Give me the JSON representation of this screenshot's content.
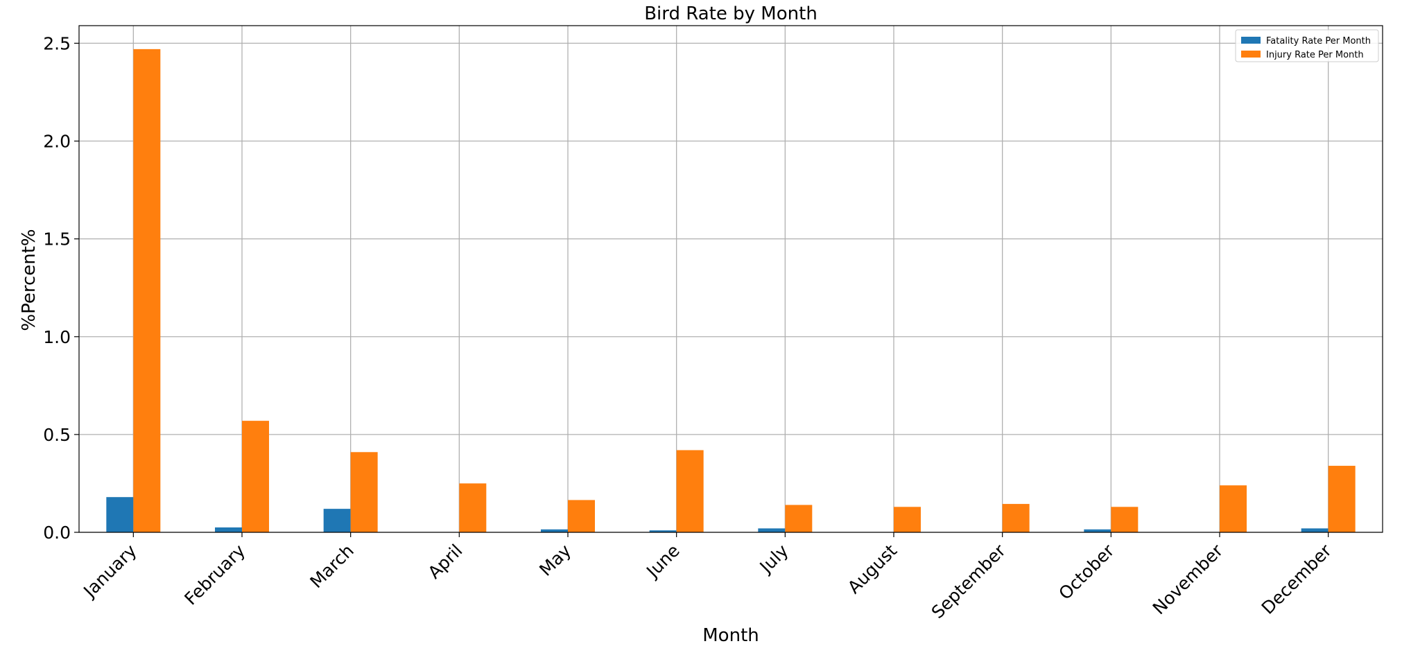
{
  "chart_data": {
    "type": "bar",
    "title": "Bird Rate by Month",
    "xlabel": "Month",
    "ylabel": "%Percent%",
    "categories": [
      "January",
      "February",
      "March",
      "April",
      "May",
      "June",
      "July",
      "August",
      "September",
      "October",
      "November",
      "December"
    ],
    "series": [
      {
        "name": "Fatality Rate Per Month",
        "color": "#1f77b4",
        "values": [
          0.18,
          0.025,
          0.12,
          0.0,
          0.015,
          0.01,
          0.02,
          0.0,
          0.0,
          0.015,
          0.0,
          0.02
        ]
      },
      {
        "name": "Injury Rate Per Month",
        "color": "#ff7f0e",
        "values": [
          2.47,
          0.57,
          0.41,
          0.25,
          0.165,
          0.42,
          0.14,
          0.13,
          0.145,
          0.13,
          0.24,
          0.34
        ]
      }
    ],
    "ylim": [
      0,
      2.59
    ],
    "yticks": [
      0.0,
      0.5,
      1.0,
      1.5,
      2.0,
      2.5
    ],
    "ytick_labels": [
      "0.0",
      "0.5",
      "1.0",
      "1.5",
      "2.0",
      "2.5"
    ],
    "grid": true,
    "legend_position": "top-right"
  }
}
